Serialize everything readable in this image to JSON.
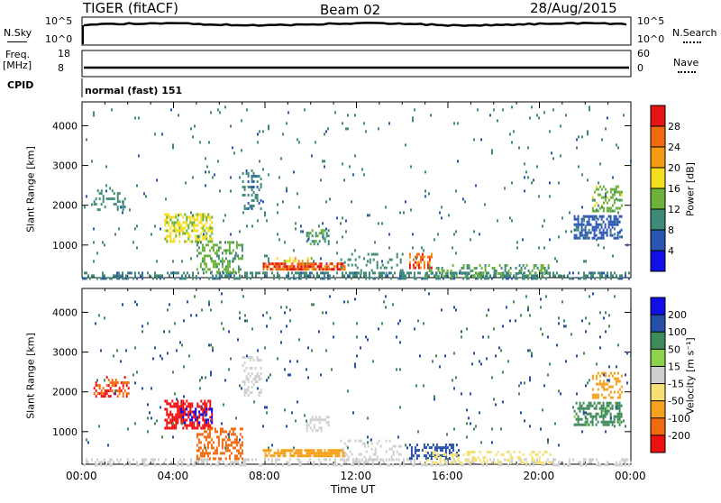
{
  "header": {
    "title": "TIGER (fitACF)",
    "beam": "Beam 02",
    "date": "28/Aug/2015"
  },
  "top_panels": {
    "nsky_label": "N.Sky",
    "nsearch_label": "N.Search",
    "count_tick_top": "10^5",
    "count_tick_bottom": "10^0",
    "freq_label": "Freq.",
    "freq_unit": "[MHz]",
    "freq_ticks": [
      "18",
      "8"
    ],
    "nave_label": "Nave",
    "nave_ticks": [
      "60",
      "0"
    ],
    "cpid_label": "CPID",
    "cpid_text": "normal (fast) 151"
  },
  "x_axis": {
    "label": "Time UT",
    "range_hours": [
      0,
      24
    ],
    "tick_labels": [
      "00:00",
      "04:00",
      "08:00",
      "12:00",
      "16:00",
      "20:00",
      "00:00"
    ]
  },
  "colors": {
    "power_scale": [
      "#1010e6",
      "#2b56b4",
      "#3f8a78",
      "#6cb23a",
      "#f5dd1f",
      "#f59a12",
      "#f06a10",
      "#e61414"
    ],
    "velocity_scale": [
      "#ee1111",
      "#f06a10",
      "#f5a21f",
      "#f5e071",
      "#cfcfcf",
      "#8bd34a",
      "#3e8a5a",
      "#264fa8",
      "#1010e6"
    ]
  },
  "chart_data": [
    {
      "type": "heatmap",
      "panel": "power",
      "x_range": [
        0,
        24
      ],
      "ylabel": "Slant Range [km]",
      "ylim": [
        180,
        4600
      ],
      "y_ticks": [
        "1000",
        "2000",
        "3000",
        "4000"
      ],
      "colorbar_label": "Power [dB]",
      "colorbar_range": [
        0,
        32
      ],
      "colorbar_ticks": [
        "4",
        "8",
        "12",
        "16",
        "20",
        "24",
        "28"
      ],
      "regions": [
        {
          "t0": 0.0,
          "t1": 24.0,
          "r0": 180,
          "r1": 330,
          "v": 9,
          "d": 0.45
        },
        {
          "t0": 3.6,
          "t1": 5.7,
          "r0": 1100,
          "r1": 1800,
          "v": 17,
          "d": 0.55
        },
        {
          "t0": 5.0,
          "t1": 7.0,
          "r0": 350,
          "r1": 1100,
          "v": 13,
          "d": 0.4
        },
        {
          "t0": 7.9,
          "t1": 11.5,
          "r0": 380,
          "r1": 560,
          "v": 27,
          "d": 0.75
        },
        {
          "t0": 8.5,
          "t1": 10.0,
          "r0": 550,
          "r1": 700,
          "v": 18,
          "d": 0.3
        },
        {
          "t0": 11.3,
          "t1": 14.0,
          "r0": 300,
          "r1": 800,
          "v": 10,
          "d": 0.2
        },
        {
          "t0": 14.3,
          "t1": 15.3,
          "r0": 450,
          "r1": 800,
          "v": 26,
          "d": 0.5
        },
        {
          "t0": 15.0,
          "t1": 20.5,
          "r0": 230,
          "r1": 520,
          "v": 12,
          "d": 0.35
        },
        {
          "t0": 21.5,
          "t1": 23.6,
          "r0": 1200,
          "r1": 1750,
          "v": 7,
          "d": 0.6
        },
        {
          "t0": 22.3,
          "t1": 23.6,
          "r0": 1850,
          "r1": 2500,
          "v": 14,
          "d": 0.35
        },
        {
          "t0": 7.0,
          "t1": 7.8,
          "r0": 1900,
          "r1": 2900,
          "v": 9,
          "d": 0.3
        },
        {
          "t0": 9.8,
          "t1": 10.8,
          "r0": 1000,
          "r1": 1400,
          "v": 12,
          "d": 0.45
        },
        {
          "t0": 0.5,
          "t1": 2.0,
          "r0": 1900,
          "r1": 2400,
          "v": 10,
          "d": 0.3
        },
        {
          "t0": 0.0,
          "t1": 24.0,
          "r0": 600,
          "r1": 4500,
          "v": 9,
          "d": 0.018
        }
      ]
    },
    {
      "type": "heatmap",
      "panel": "velocity",
      "x_range": [
        0,
        24
      ],
      "ylabel": "Slant Range [km]",
      "ylim": [
        180,
        4600
      ],
      "y_ticks": [
        "1000",
        "2000",
        "3000",
        "4000"
      ],
      "colorbar_label": "Velocity [m s⁻¹]",
      "colorbar_ticks": [
        "200",
        "100",
        "50",
        "15",
        "-15",
        "-50",
        "-100",
        "-200"
      ],
      "regions": [
        {
          "t0": 0.0,
          "t1": 24.0,
          "r0": 180,
          "r1": 330,
          "v": 8,
          "d": 0.35
        },
        {
          "t0": 3.6,
          "t1": 5.7,
          "r0": 1100,
          "r1": 1800,
          "v": -250,
          "d": 0.6
        },
        {
          "t0": 4.3,
          "t1": 5.7,
          "r0": 1200,
          "r1": 1600,
          "v": 250,
          "d": 0.25
        },
        {
          "t0": 5.0,
          "t1": 7.0,
          "r0": 350,
          "r1": 1100,
          "v": -150,
          "d": 0.45
        },
        {
          "t0": 7.9,
          "t1": 11.5,
          "r0": 380,
          "r1": 560,
          "v": -80,
          "d": 0.75
        },
        {
          "t0": 11.3,
          "t1": 14.0,
          "r0": 300,
          "r1": 800,
          "v": 0,
          "d": 0.25
        },
        {
          "t0": 14.3,
          "t1": 16.5,
          "r0": 300,
          "r1": 700,
          "v": 120,
          "d": 0.45
        },
        {
          "t0": 15.0,
          "t1": 20.5,
          "r0": 230,
          "r1": 520,
          "v": -30,
          "d": 0.3
        },
        {
          "t0": 21.5,
          "t1": 23.6,
          "r0": 1200,
          "r1": 1750,
          "v": 60,
          "d": 0.55
        },
        {
          "t0": 22.3,
          "t1": 23.6,
          "r0": 1850,
          "r1": 2500,
          "v": -80,
          "d": 0.35
        },
        {
          "t0": 7.0,
          "t1": 7.8,
          "r0": 1900,
          "r1": 2900,
          "v": 0,
          "d": 0.3
        },
        {
          "t0": 9.8,
          "t1": 10.8,
          "r0": 1000,
          "r1": 1400,
          "v": 0,
          "d": 0.4
        },
        {
          "t0": 0.5,
          "t1": 2.0,
          "r0": 1900,
          "r1": 2400,
          "v": -200,
          "d": 0.3
        },
        {
          "t0": 0.0,
          "t1": 24.0,
          "r0": 600,
          "r1": 4500,
          "v": 100,
          "d": 0.018
        }
      ]
    }
  ]
}
